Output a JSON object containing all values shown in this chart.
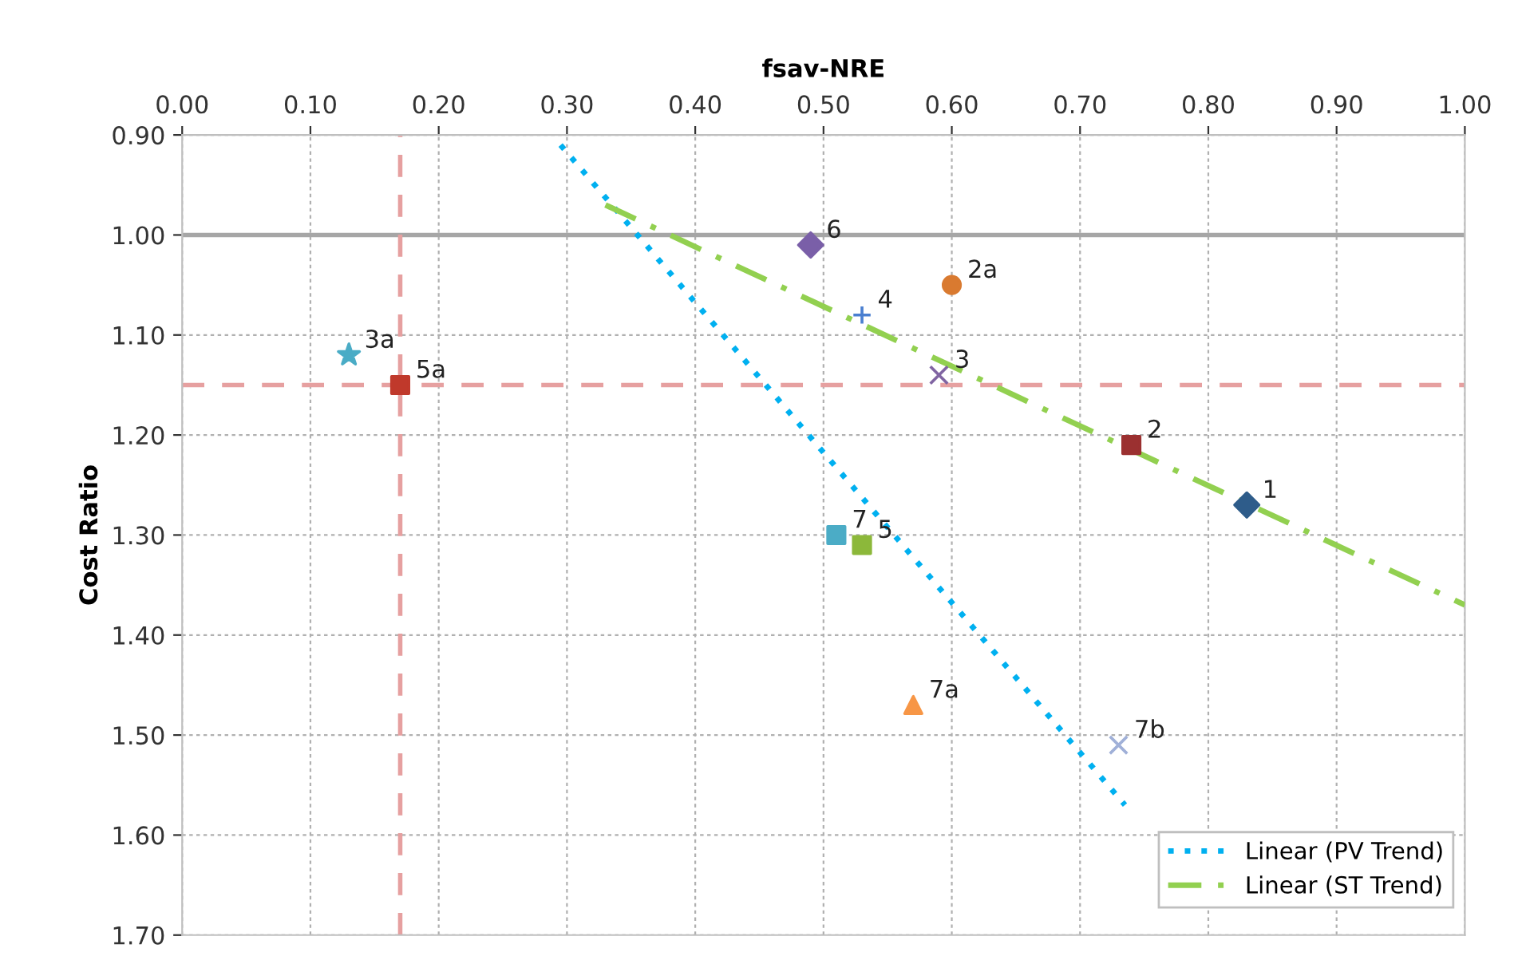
{
  "chart_data": {
    "type": "scatter",
    "xlabel": "fsav-NRE",
    "ylabel": "Cost Ratio",
    "xlim": [
      0,
      1
    ],
    "ylim": [
      1.7,
      0.9
    ],
    "xticks": [
      {
        "value": 0,
        "label": "0.00"
      },
      {
        "value": 0.1,
        "label": "0.10"
      },
      {
        "value": 0.2,
        "label": "0.20"
      },
      {
        "value": 0.3,
        "label": "0.30"
      },
      {
        "value": 0.4,
        "label": "0.40"
      },
      {
        "value": 0.5,
        "label": "0.50"
      },
      {
        "value": 0.6,
        "label": "0.60"
      },
      {
        "value": 0.7,
        "label": "0.70"
      },
      {
        "value": 0.8,
        "label": "0.80"
      },
      {
        "value": 0.9,
        "label": "0.90"
      },
      {
        "value": 1,
        "label": "1.00"
      }
    ],
    "yticks": [
      {
        "value": 0.9,
        "label": "0.90"
      },
      {
        "value": 1,
        "label": "1.00"
      },
      {
        "value": 1.1,
        "label": "1.10"
      },
      {
        "value": 1.2,
        "label": "1.20"
      },
      {
        "value": 1.3,
        "label": "1.30"
      },
      {
        "value": 1.4,
        "label": "1.40"
      },
      {
        "value": 1.5,
        "label": "1.50"
      },
      {
        "value": 1.6,
        "label": "1.60"
      },
      {
        "value": 1.7,
        "label": "1.70"
      }
    ],
    "grid": true,
    "legend": "bottom right",
    "series": [
      {
        "name": "1",
        "color": "#2e5c8a",
        "marker": "diamond",
        "x": [
          0.83
        ],
        "values": [
          1.27
        ]
      },
      {
        "name": "2",
        "color": "#9b3030",
        "marker": "square",
        "x": [
          0.74
        ],
        "values": [
          1.21
        ]
      },
      {
        "name": "2a",
        "color": "#d97a30",
        "marker": "circle",
        "x": [
          0.6
        ],
        "values": [
          1.05
        ]
      },
      {
        "name": "3",
        "color": "#8064a2",
        "marker": "cross",
        "x": [
          0.59
        ],
        "values": [
          1.14
        ]
      },
      {
        "name": "3a",
        "color": "#4aacc6",
        "marker": "star",
        "x": [
          0.13
        ],
        "values": [
          1.12
        ]
      },
      {
        "name": "4",
        "color": "#4a7fd0",
        "marker": "plus",
        "x": [
          0.53
        ],
        "values": [
          1.08
        ]
      },
      {
        "name": "5",
        "color": "#8cb83a",
        "marker": "square",
        "x": [
          0.53
        ],
        "values": [
          1.31
        ]
      },
      {
        "name": "5a",
        "color": "#c0392b",
        "marker": "square",
        "x": [
          0.17
        ],
        "values": [
          1.15
        ]
      },
      {
        "name": "6",
        "color": "#7a5fa8",
        "marker": "diamond",
        "x": [
          0.49
        ],
        "values": [
          1.01
        ]
      },
      {
        "name": "7",
        "color": "#4bacc6",
        "marker": "square",
        "x": [
          0.51
        ],
        "values": [
          1.3
        ]
      },
      {
        "name": "7a",
        "color": "#f79646",
        "marker": "triangle",
        "x": [
          0.57
        ],
        "values": [
          1.47
        ]
      },
      {
        "name": "7b",
        "color": "#a0b0d8",
        "marker": "cross",
        "x": [
          0.73
        ],
        "values": [
          1.51
        ]
      },
      {
        "name": "Linear (PV Trend)",
        "type": "line",
        "color": "#00b0f0",
        "line_style": "dotted",
        "x": [
          0.295,
          0.735
        ],
        "values": [
          0.91,
          1.57
        ]
      },
      {
        "name": "Linear (ST Trend)",
        "type": "line",
        "color": "#92d050",
        "line_style": "dashdot",
        "x": [
          0.33,
          1.0
        ],
        "values": [
          0.97,
          1.37
        ]
      }
    ],
    "ref_lines": [
      {
        "axis": "y",
        "value": 1.0,
        "color": "#a6a6a6",
        "line_style": "solid"
      },
      {
        "axis": "y",
        "value": 1.15,
        "color": "#e6a0a0",
        "line_style": "dashed"
      },
      {
        "axis": "x",
        "value": 0.17,
        "color": "#e6a0a0",
        "line_style": "dashed"
      }
    ]
  }
}
